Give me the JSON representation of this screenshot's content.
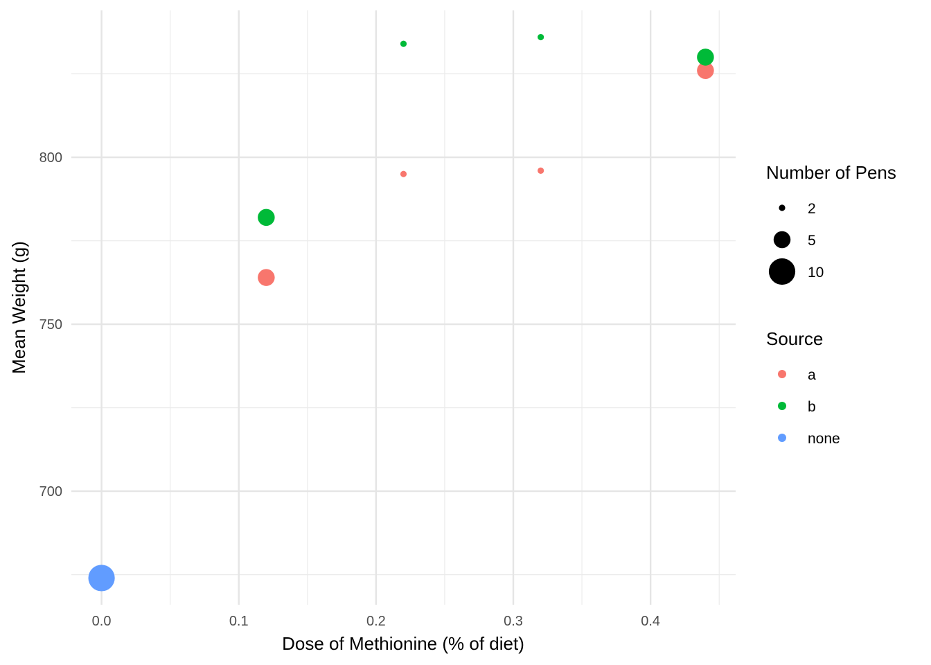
{
  "chart_data": {
    "type": "scatter",
    "title": "",
    "xlabel": "Dose of Methionine (% of diet)",
    "ylabel": "Mean Weight (g)",
    "xlim": [
      -0.022,
      0.462
    ],
    "ylim": [
      666,
      844
    ],
    "xticks": [
      0.0,
      0.1,
      0.2,
      0.3,
      0.4
    ],
    "xtick_labels": [
      "0.0",
      "0.1",
      "0.2",
      "0.3",
      "0.4"
    ],
    "yticks": [
      700,
      750,
      800
    ],
    "ytick_labels": [
      "700",
      "750",
      "800"
    ],
    "grid": true,
    "legend_position": "right",
    "size_legend": {
      "title": "Number of Pens",
      "values": [
        2,
        5,
        10
      ],
      "labels": [
        "2",
        "5",
        "10"
      ]
    },
    "color_legend": {
      "title": "Source",
      "labels": [
        "a",
        "b",
        "none"
      ],
      "colors": [
        "#F8766D",
        "#00BA38",
        "#619CFF"
      ]
    },
    "points": [
      {
        "x": 0.0,
        "y": 674,
        "source": "none",
        "pens": 10
      },
      {
        "x": 0.12,
        "y": 764,
        "source": "a",
        "pens": 5
      },
      {
        "x": 0.12,
        "y": 782,
        "source": "b",
        "pens": 5
      },
      {
        "x": 0.22,
        "y": 795,
        "source": "a",
        "pens": 2
      },
      {
        "x": 0.22,
        "y": 834,
        "source": "b",
        "pens": 2
      },
      {
        "x": 0.32,
        "y": 796,
        "source": "a",
        "pens": 2
      },
      {
        "x": 0.32,
        "y": 836,
        "source": "b",
        "pens": 2
      },
      {
        "x": 0.44,
        "y": 826,
        "source": "a",
        "pens": 5
      },
      {
        "x": 0.44,
        "y": 830,
        "source": "b",
        "pens": 5
      }
    ]
  }
}
